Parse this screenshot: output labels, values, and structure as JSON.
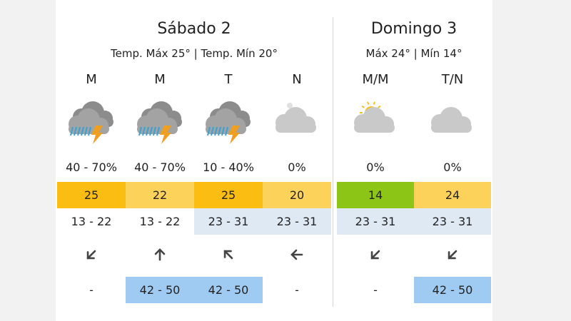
{
  "days": [
    {
      "title": "Sábado 2",
      "subtitle": "Temp. Máx 25° | Temp. Mín 20°",
      "periods": [
        {
          "label": "M",
          "precip": "40 - 70%",
          "temp": "25",
          "temp_color": "#fbbd12",
          "wind": "13 - 22",
          "gust": "-"
        },
        {
          "label": "M",
          "precip": "40 - 70%",
          "temp": "22",
          "temp_color": "#fdd25a",
          "wind": "13 - 22",
          "gust": "42 - 50",
          "gust_color": "#9fcbf3"
        },
        {
          "label": "T",
          "precip": "10 - 40%",
          "temp": "25",
          "temp_color": "#fbbd12",
          "wind": "23 - 31",
          "wind_color": "#dfe9f4",
          "gust": "42 - 50",
          "gust_color": "#9fcbf3"
        },
        {
          "label": "N",
          "precip": "0%",
          "temp": "20",
          "temp_color": "#fdd25a",
          "wind": "23 - 31",
          "wind_color": "#dfe9f4",
          "gust": "-"
        }
      ]
    },
    {
      "title": "Domingo 3",
      "subtitle": "Máx 24° | Mín 14°",
      "periods": [
        {
          "label": "M/M",
          "precip": "0%",
          "temp": "14",
          "temp_color": "#8dc516",
          "wind": "23 - 31",
          "wind_color": "#dfe9f4",
          "gust": "-"
        },
        {
          "label": "T/N",
          "precip": "0%",
          "temp": "24",
          "temp_color": "#fdd25a",
          "wind": "23 - 31",
          "wind_color": "#dfe9f4",
          "gust": "42 - 50",
          "gust_color": "#9fcbf3"
        }
      ]
    }
  ]
}
